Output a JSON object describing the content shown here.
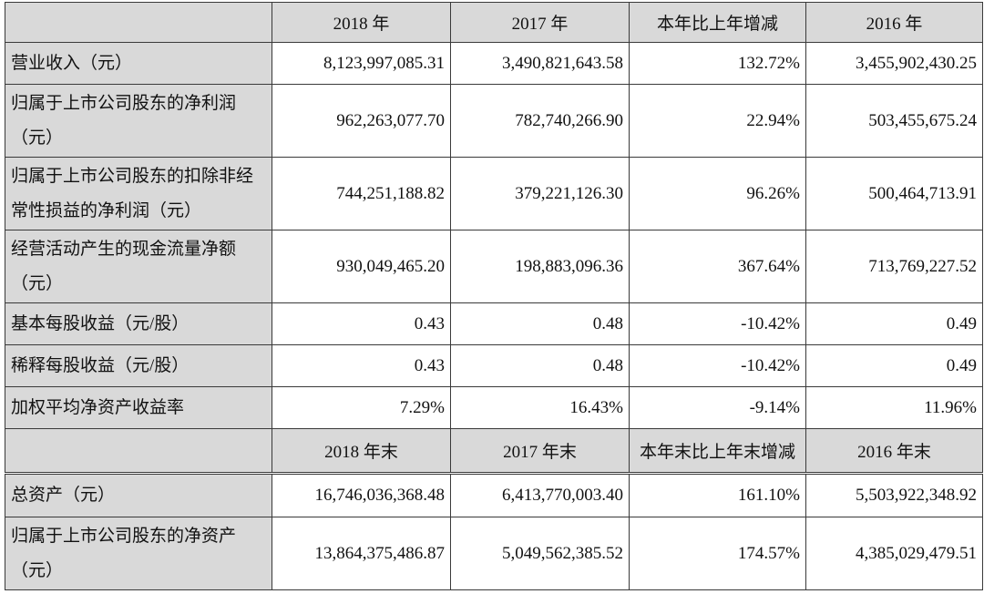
{
  "header1": {
    "columns": [
      "2018 年",
      "2017 年",
      "本年比上年增减",
      "2016 年"
    ]
  },
  "rows1": [
    {
      "label": "营业收入（元）",
      "values": [
        "8,123,997,085.31",
        "3,490,821,643.58",
        "132.72%",
        "3,455,902,430.25"
      ]
    },
    {
      "label": "归属于上市公司股东的净利润（元）",
      "values": [
        "962,263,077.70",
        "782,740,266.90",
        "22.94%",
        "503,455,675.24"
      ]
    },
    {
      "label": "归属于上市公司股东的扣除非经常性损益的净利润（元）",
      "values": [
        "744,251,188.82",
        "379,221,126.30",
        "96.26%",
        "500,464,713.91"
      ]
    },
    {
      "label": "经营活动产生的现金流量净额（元）",
      "values": [
        "930,049,465.20",
        "198,883,096.36",
        "367.64%",
        "713,769,227.52"
      ]
    },
    {
      "label": "基本每股收益（元/股）",
      "values": [
        "0.43",
        "0.48",
        "-10.42%",
        "0.49"
      ]
    },
    {
      "label": "稀释每股收益（元/股）",
      "values": [
        "0.43",
        "0.48",
        "-10.42%",
        "0.49"
      ]
    },
    {
      "label": "加权平均净资产收益率",
      "values": [
        "7.29%",
        "16.43%",
        "-9.14%",
        "11.96%"
      ]
    }
  ],
  "header2": {
    "columns": [
      "2018 年末",
      "2017 年末",
      "本年末比上年末增减",
      "2016 年末"
    ]
  },
  "rows2": [
    {
      "label": "总资产（元）",
      "values": [
        "16,746,036,368.48",
        "6,413,770,003.40",
        "161.10%",
        "5,503,922,348.92"
      ]
    },
    {
      "label": "归属于上市公司股东的净资产（元）",
      "values": [
        "13,864,375,486.87",
        "5,049,562,385.52",
        "174.57%",
        "4,385,029,479.51"
      ]
    }
  ]
}
